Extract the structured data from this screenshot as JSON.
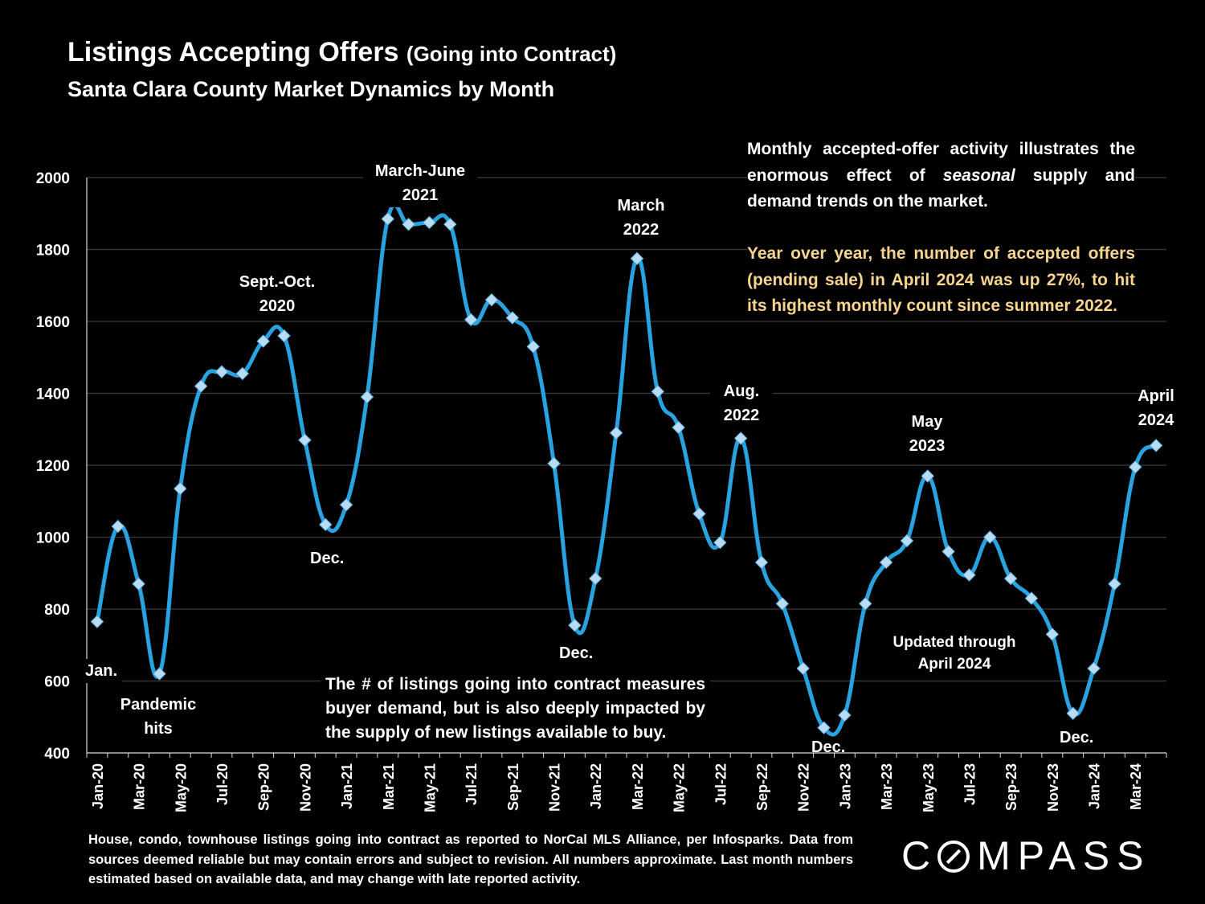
{
  "header": {
    "title": "Listings Accepting Offers",
    "title_suffix": "(Going into Contract)",
    "subtitle": "Santa Clara County Market Dynamics by Month"
  },
  "notes": {
    "note1": "Monthly accepted-offer activity illustrates the enormous effect of seasonal supply and demand trends on the market.",
    "note1_emphasis": "seasonal",
    "note2": "Year over year, the number of accepted offers (pending sale) in April 2024 was up 27%, to hit its highest monthly count since summer 2022.",
    "note3": "The # of listings going into contract measures buyer demand, but is also deeply impacted by the supply of new listings available to buy.",
    "updated": "Updated through April 2024",
    "footnote": "House, condo, townhouse listings going into contract as reported to NorCal MLS Alliance, per Infosparks. Data from sources deemed reliable but may contain errors and subject to revision. All numbers approximate. Last month numbers estimated based on available data, and may change with late reported activity."
  },
  "logo": "COMPASS",
  "colors": {
    "line": "#29a3e0",
    "marker": "#b9dcf3",
    "grid": "#3c3c3c",
    "highlight": "#f8d58f"
  },
  "chart_data": {
    "type": "line",
    "title": "Listings Accepting Offers",
    "ylim": [
      400,
      2000
    ],
    "yticks": [
      400,
      600,
      800,
      1000,
      1200,
      1400,
      1600,
      1800,
      2000
    ],
    "x_tick_labels": [
      "Jan-20",
      "Mar-20",
      "May-20",
      "Jul-20",
      "Sep-20",
      "Nov-20",
      "Jan-21",
      "Mar-21",
      "May-21",
      "Jul-21",
      "Sep-21",
      "Nov-21",
      "Jan-22",
      "Mar-22",
      "May-22",
      "Jul-22",
      "Sep-22",
      "Nov-22",
      "Jan-23",
      "Mar-23",
      "May-23",
      "Jul-23",
      "Sep-23",
      "Nov-23",
      "Jan-24",
      "Mar-24"
    ],
    "x": [
      "Jan-20",
      "Feb-20",
      "Mar-20",
      "Apr-20",
      "May-20",
      "Jun-20",
      "Jul-20",
      "Aug-20",
      "Sep-20",
      "Oct-20",
      "Nov-20",
      "Dec-20",
      "Jan-21",
      "Feb-21",
      "Mar-21",
      "Apr-21",
      "May-21",
      "Jun-21",
      "Jul-21",
      "Aug-21",
      "Sep-21",
      "Oct-21",
      "Nov-21",
      "Dec-21",
      "Jan-22",
      "Feb-22",
      "Mar-22",
      "Apr-22",
      "May-22",
      "Jun-22",
      "Jul-22",
      "Aug-22",
      "Sep-22",
      "Oct-22",
      "Nov-22",
      "Dec-22",
      "Jan-23",
      "Feb-23",
      "Mar-23",
      "Apr-23",
      "May-23",
      "Jun-23",
      "Jul-23",
      "Aug-23",
      "Sep-23",
      "Oct-23",
      "Nov-23",
      "Dec-23",
      "Jan-24",
      "Feb-24",
      "Mar-24",
      "Apr-24"
    ],
    "series": [
      {
        "values": [
          765,
          1030,
          870,
          620,
          1135,
          1420,
          1460,
          1455,
          1545,
          1560,
          1270,
          1035,
          1090,
          1390,
          1885,
          1870,
          1875,
          1870,
          1605,
          1660,
          1610,
          1530,
          1205,
          755,
          885,
          1290,
          1775,
          1405,
          1305,
          1065,
          985,
          1275,
          930,
          815,
          635,
          470,
          505,
          815,
          930,
          990,
          1170,
          960,
          895,
          1000,
          885,
          830,
          730,
          510,
          635,
          870,
          1195,
          1255
        ]
      }
    ],
    "annotations": [
      {
        "text": "Jan.",
        "x": "Jan-20"
      },
      {
        "text": "Pandemic hits",
        "x": "Apr-20"
      },
      {
        "text": "Sept.-Oct. 2020",
        "x": "Oct-20"
      },
      {
        "text": "Dec.",
        "x": "Dec-20"
      },
      {
        "text": "March-June 2021",
        "x": "Apr-21"
      },
      {
        "text": "Dec.",
        "x": "Dec-21"
      },
      {
        "text": "March 2022",
        "x": "Mar-22"
      },
      {
        "text": "Aug. 2022",
        "x": "Aug-22"
      },
      {
        "text": "Dec.",
        "x": "Dec-22"
      },
      {
        "text": "May 2023",
        "x": "May-23"
      },
      {
        "text": "Dec.",
        "x": "Dec-23"
      },
      {
        "text": "April 2024",
        "x": "Apr-24"
      }
    ],
    "grid": true,
    "legend": "none"
  }
}
